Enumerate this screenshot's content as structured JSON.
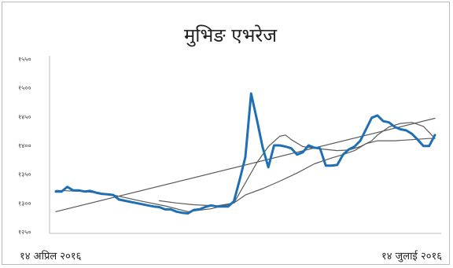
{
  "chart_data": {
    "type": "line",
    "title": "मुभिङ एभरेज",
    "xlabel": "",
    "ylabel": "",
    "x_start_label": "१४ अप्रिल २०१६",
    "x_end_label": "१४ जुलाई २०१६",
    "y_ticks": [
      1250,
      1300,
      1350,
      1400,
      1450,
      1500,
      1550
    ],
    "y_tick_labels": [
      "१२५०",
      "१३००",
      "१३५०",
      "१४००",
      "१४५०",
      "१५००",
      "१५५०"
    ],
    "ylim": [
      1250,
      1550
    ],
    "grid": false,
    "legend": "none",
    "series": [
      {
        "role": "price",
        "color": "#1f6fb5",
        "points": [
          [
            0,
            1320
          ],
          [
            2,
            1320
          ],
          [
            4,
            1328
          ],
          [
            6,
            1322
          ],
          [
            8,
            1322
          ],
          [
            10,
            1320
          ],
          [
            12,
            1321
          ],
          [
            14,
            1318
          ],
          [
            16,
            1316
          ],
          [
            18,
            1315
          ],
          [
            20,
            1314
          ],
          [
            22,
            1306
          ],
          [
            24,
            1304
          ],
          [
            26,
            1302
          ],
          [
            28,
            1300
          ],
          [
            30,
            1298
          ],
          [
            32,
            1296
          ],
          [
            34,
            1294
          ],
          [
            36,
            1293
          ],
          [
            38,
            1289
          ],
          [
            40,
            1289
          ],
          [
            42,
            1285
          ],
          [
            44,
            1283
          ],
          [
            46,
            1282
          ],
          [
            48,
            1288
          ],
          [
            50,
            1289
          ],
          [
            52,
            1293
          ],
          [
            54,
            1296
          ],
          [
            56,
            1294
          ],
          [
            58,
            1294
          ],
          [
            60,
            1294
          ],
          [
            62,
            1303
          ],
          [
            64,
            1340
          ],
          [
            66,
            1380
          ],
          [
            68,
            1490
          ],
          [
            70,
            1445
          ],
          [
            72,
            1397
          ],
          [
            74,
            1362
          ],
          [
            76,
            1400
          ],
          [
            78,
            1400
          ],
          [
            80,
            1398
          ],
          [
            82,
            1395
          ],
          [
            84,
            1384
          ],
          [
            86,
            1388
          ],
          [
            88,
            1400
          ],
          [
            90,
            1396
          ],
          [
            92,
            1395
          ],
          [
            94,
            1365
          ],
          [
            96,
            1365
          ],
          [
            98,
            1366
          ],
          [
            100,
            1384
          ],
          [
            102,
            1393
          ],
          [
            104,
            1398
          ],
          [
            106,
            1408
          ],
          [
            108,
            1428
          ],
          [
            110,
            1448
          ],
          [
            112,
            1452
          ],
          [
            114,
            1442
          ],
          [
            116,
            1440
          ],
          [
            118,
            1432
          ],
          [
            120,
            1428
          ],
          [
            122,
            1426
          ],
          [
            124,
            1420
          ],
          [
            126,
            1410
          ],
          [
            128,
            1399
          ],
          [
            130,
            1399
          ],
          [
            132,
            1418
          ]
        ]
      },
      {
        "role": "short-ma",
        "color": "#5a5a5a",
        "points": [
          [
            0,
            1322
          ],
          [
            10,
            1320
          ],
          [
            20,
            1314
          ],
          [
            30,
            1303
          ],
          [
            38,
            1295
          ],
          [
            46,
            1285
          ],
          [
            54,
            1290
          ],
          [
            62,
            1300
          ],
          [
            66,
            1335
          ],
          [
            70,
            1370
          ],
          [
            74,
            1398
          ],
          [
            78,
            1416
          ],
          [
            80,
            1418
          ],
          [
            82,
            1410
          ],
          [
            86,
            1398
          ],
          [
            90,
            1395
          ],
          [
            94,
            1393
          ],
          [
            98,
            1391
          ],
          [
            102,
            1392
          ],
          [
            106,
            1398
          ],
          [
            110,
            1408
          ],
          [
            112,
            1418
          ],
          [
            116,
            1432
          ],
          [
            120,
            1438
          ],
          [
            124,
            1440
          ],
          [
            128,
            1433
          ],
          [
            132,
            1412
          ]
        ]
      },
      {
        "role": "long-ma",
        "color": "#5a5a5a",
        "points": [
          [
            36,
            1304
          ],
          [
            42,
            1300
          ],
          [
            48,
            1297
          ],
          [
            56,
            1295
          ],
          [
            62,
            1300
          ],
          [
            66,
            1314
          ],
          [
            72,
            1325
          ],
          [
            78,
            1338
          ],
          [
            84,
            1352
          ],
          [
            90,
            1368
          ],
          [
            96,
            1378
          ],
          [
            100,
            1384
          ],
          [
            104,
            1391
          ],
          [
            108,
            1403
          ],
          [
            112,
            1408
          ],
          [
            118,
            1408
          ],
          [
            124,
            1410
          ],
          [
            130,
            1412
          ],
          [
            132,
            1412
          ]
        ]
      },
      {
        "role": "trend",
        "color": "#5a5a5a",
        "points": [
          [
            0,
            1285
          ],
          [
            132,
            1447
          ]
        ]
      }
    ]
  }
}
